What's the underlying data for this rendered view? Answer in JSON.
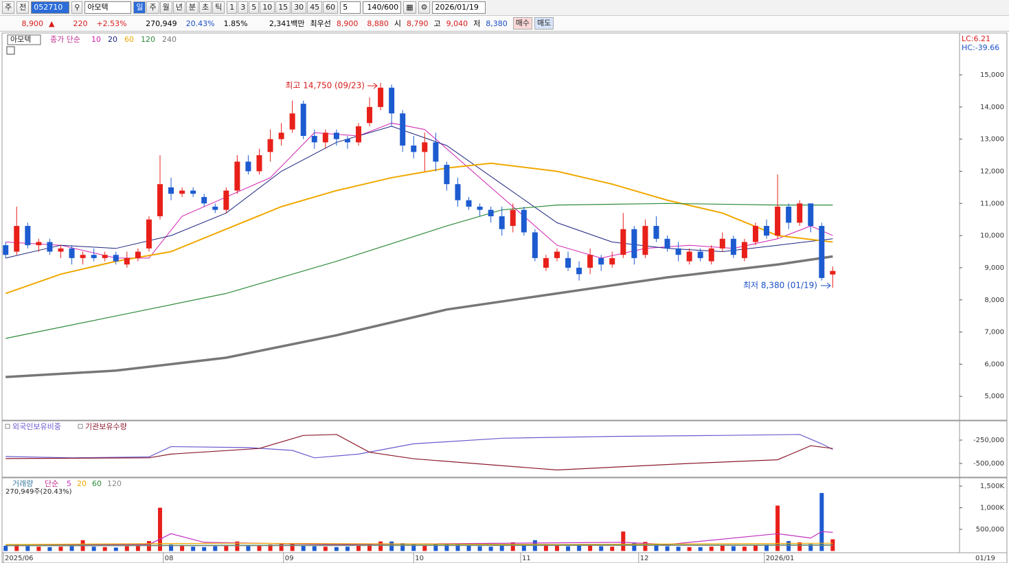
{
  "toolbar": {
    "buttons": [
      "주",
      "전"
    ],
    "code": "052710",
    "name": "아모텍",
    "periods": [
      "일",
      "주",
      "월",
      "년",
      "분",
      "초",
      "틱"
    ],
    "nums": [
      "1",
      "3",
      "5",
      "10",
      "15",
      "30",
      "45",
      "60"
    ],
    "unit": "5",
    "count": "140/600",
    "date": "2026/01/19"
  },
  "quote": {
    "price": "8,900",
    "change": "220",
    "rate": "+2.53%",
    "volume": "270,949",
    "turnover": "20.43%",
    "ratio": "1.85%",
    "amount": "2,341백만",
    "best_label": "최우선",
    "ask": "8,900",
    "bid": "8,880",
    "open_label": "시",
    "open": "8,790",
    "high_label": "고",
    "high": "9,040",
    "low_label": "저",
    "low": "8,380",
    "buy": "매수",
    "sell": "매도"
  },
  "chart_data": [
    {
      "type": "candlestick",
      "title": "아모텍",
      "legend_label": "종가 단순",
      "up_color": "#e8201a",
      "down_color": "#1c5bd0",
      "ohlc": [
        [
          9700,
          9800,
          9300,
          9400
        ],
        [
          9500,
          10900,
          9400,
          10300
        ],
        [
          10300,
          10400,
          9600,
          9700
        ],
        [
          9700,
          9900,
          9500,
          9800
        ],
        [
          9800,
          9900,
          9400,
          9500
        ],
        [
          9500,
          9700,
          9300,
          9600
        ],
        [
          9600,
          9700,
          9100,
          9300
        ],
        [
          9300,
          9500,
          9100,
          9400
        ],
        [
          9400,
          9600,
          9200,
          9300
        ],
        [
          9300,
          9500,
          9200,
          9400
        ],
        [
          9400,
          9500,
          9100,
          9200
        ],
        [
          9100,
          9500,
          9000,
          9300
        ],
        [
          9300,
          9600,
          9200,
          9500
        ],
        [
          9600,
          10600,
          9500,
          10500
        ],
        [
          10600,
          12500,
          10500,
          11600
        ],
        [
          11500,
          11800,
          11100,
          11300
        ],
        [
          11300,
          11500,
          11200,
          11400
        ],
        [
          11400,
          11500,
          11200,
          11300
        ],
        [
          11200,
          11300,
          10900,
          11000
        ],
        [
          10900,
          11000,
          10700,
          10800
        ],
        [
          10800,
          11500,
          10700,
          11400
        ],
        [
          11400,
          12500,
          11300,
          12300
        ],
        [
          12300,
          12500,
          11900,
          12000
        ],
        [
          12000,
          12700,
          11900,
          12500
        ],
        [
          12600,
          13300,
          12300,
          13000
        ],
        [
          13000,
          13500,
          12800,
          13200
        ],
        [
          13300,
          14200,
          13200,
          13800
        ],
        [
          14100,
          14200,
          13000,
          13100
        ],
        [
          13100,
          13300,
          12700,
          12900
        ],
        [
          12900,
          13300,
          12700,
          13200
        ],
        [
          13200,
          13300,
          12800,
          13000
        ],
        [
          13000,
          13100,
          12700,
          12900
        ],
        [
          12900,
          13500,
          12800,
          13400
        ],
        [
          13500,
          14300,
          13400,
          14000
        ],
        [
          14000,
          14750,
          13900,
          14600
        ],
        [
          14600,
          14700,
          13400,
          13800
        ],
        [
          13800,
          13900,
          12600,
          12800
        ],
        [
          12800,
          13100,
          12400,
          12600
        ],
        [
          12600,
          13200,
          12000,
          12900
        ],
        [
          12900,
          13200,
          12000,
          12300
        ],
        [
          12200,
          12300,
          11400,
          11600
        ],
        [
          11600,
          11800,
          10900,
          11100
        ],
        [
          11100,
          11200,
          10800,
          10900
        ],
        [
          10900,
          11000,
          10600,
          10800
        ],
        [
          10800,
          10900,
          10400,
          10600
        ],
        [
          10600,
          10900,
          10000,
          10200
        ],
        [
          10300,
          11000,
          10100,
          10800
        ],
        [
          10800,
          10900,
          10000,
          10100
        ],
        [
          10100,
          10200,
          9200,
          9300
        ],
        [
          9000,
          9400,
          8900,
          9300
        ],
        [
          9300,
          9600,
          9200,
          9500
        ],
        [
          9300,
          9500,
          8900,
          9000
        ],
        [
          9000,
          9200,
          8600,
          8800
        ],
        [
          9000,
          9600,
          8800,
          9400
        ],
        [
          9300,
          9400,
          8900,
          9100
        ],
        [
          9100,
          9500,
          9000,
          9300
        ],
        [
          9400,
          10700,
          9300,
          10200
        ],
        [
          10200,
          10300,
          9100,
          9300
        ],
        [
          9400,
          10500,
          9300,
          10300
        ],
        [
          10300,
          10600,
          9800,
          9900
        ],
        [
          9900,
          10000,
          9500,
          9600
        ],
        [
          9600,
          9800,
          9200,
          9400
        ],
        [
          9200,
          9600,
          9100,
          9500
        ],
        [
          9500,
          9600,
          9200,
          9300
        ],
        [
          9200,
          9700,
          9100,
          9600
        ],
        [
          9600,
          10100,
          9500,
          9900
        ],
        [
          9900,
          10000,
          9300,
          9400
        ],
        [
          9300,
          9900,
          9200,
          9800
        ],
        [
          9800,
          10400,
          9700,
          10300
        ],
        [
          10300,
          10500,
          9900,
          10000
        ],
        [
          10000,
          11900,
          9900,
          10900
        ],
        [
          10900,
          11000,
          10200,
          10400
        ],
        [
          10400,
          11100,
          10300,
          11000
        ],
        [
          11000,
          11000,
          10100,
          10300
        ],
        [
          10300,
          10400,
          8600,
          8680
        ],
        [
          8790,
          9040,
          8380,
          8900
        ]
      ],
      "series": [
        {
          "name": "10",
          "color": "#d020b0",
          "x": [
            0,
            5,
            10,
            13,
            16,
            20,
            24,
            28,
            32,
            35,
            38,
            42,
            46,
            50,
            54,
            58,
            62,
            66,
            70,
            73,
            75
          ],
          "values": [
            9800,
            9700,
            9300,
            9300,
            10600,
            11200,
            11800,
            13200,
            13100,
            13500,
            13300,
            12100,
            10900,
            9700,
            9300,
            9600,
            9700,
            9600,
            9900,
            10300,
            10000
          ]
        },
        {
          "name": "20",
          "color": "#1a237e",
          "x": [
            0,
            5,
            10,
            15,
            20,
            25,
            30,
            35,
            40,
            45,
            50,
            55,
            60,
            65,
            70,
            75
          ],
          "values": [
            9300,
            9700,
            9600,
            10000,
            10700,
            12000,
            12900,
            13400,
            12800,
            11600,
            10400,
            9800,
            9600,
            9500,
            9700,
            9900
          ]
        },
        {
          "name": "60",
          "color": "#f0a800",
          "x": [
            0,
            5,
            10,
            15,
            20,
            25,
            30,
            35,
            40,
            44,
            50,
            55,
            60,
            65,
            70,
            75
          ],
          "values": [
            8200,
            8800,
            9200,
            9500,
            10200,
            10900,
            11400,
            11800,
            12100,
            12250,
            12000,
            11600,
            11100,
            10700,
            10000,
            9800
          ]
        },
        {
          "name": "120",
          "color": "#2e8b3a",
          "x": [
            0,
            10,
            20,
            30,
            40,
            45,
            50,
            60,
            70,
            75
          ],
          "values": [
            6800,
            7500,
            8200,
            9200,
            10300,
            10800,
            10950,
            11000,
            10950,
            10950
          ]
        },
        {
          "name": "240",
          "color": "#777777",
          "x": [
            0,
            10,
            20,
            30,
            40,
            50,
            60,
            70,
            75
          ],
          "values": [
            5600,
            5800,
            6200,
            6900,
            7700,
            8200,
            8700,
            9100,
            9350
          ]
        }
      ],
      "ylim": [
        4300,
        16260
      ],
      "xlim": [
        -0.2,
        86.5
      ],
      "yticks": [
        {
          "value": 5000,
          "label": "5,000"
        },
        {
          "value": 6000,
          "label": "6,000"
        },
        {
          "value": 7000,
          "label": "7,000"
        },
        {
          "value": 8000,
          "label": "8,000"
        },
        {
          "value": 9000,
          "label": "9,000"
        },
        {
          "value": 10000,
          "label": "10,000"
        },
        {
          "value": 11000,
          "label": "11,000"
        },
        {
          "value": 12000,
          "label": "12,000"
        },
        {
          "value": 13000,
          "label": "13,000"
        },
        {
          "value": 14000,
          "label": "14,000"
        },
        {
          "value": 15000,
          "label": "15,000"
        }
      ],
      "annotations": [
        "최고 14,750 (09/23)",
        "최저 8,380 (01/19)"
      ],
      "lc": "LC:6.21",
      "hc": "HC:-39.66"
    },
    {
      "type": "line",
      "series": [
        {
          "name": "외국인보유비중",
          "color": "#6a5acd",
          "x": [
            0,
            6,
            13,
            15,
            22,
            26,
            28,
            32,
            37,
            45,
            55,
            65,
            72,
            74,
            75
          ],
          "values": [
            -426000,
            -440000,
            -430000,
            -320000,
            -330000,
            -360000,
            -440000,
            -400000,
            -290000,
            -230000,
            -210000,
            -200000,
            -190000,
            -290000,
            -350000
          ]
        },
        {
          "name": "기관보유수량",
          "color": "#8b1a2b",
          "x": [
            0,
            13,
            15,
            23,
            27,
            30,
            33,
            37,
            50,
            62,
            70,
            73,
            75
          ],
          "values": [
            -448000,
            -440000,
            -400000,
            -340000,
            -200000,
            -190000,
            -380000,
            -450000,
            -570000,
            -500000,
            -460000,
            -310000,
            -340000
          ]
        }
      ],
      "ylim": [
        -639700,
        -51500
      ],
      "xlim": [
        -0.2,
        86.5
      ],
      "yticks": [
        {
          "value": -250000,
          "label": "-250,000"
        },
        {
          "value": -500000,
          "label": "-500,000"
        }
      ]
    },
    {
      "type": "bar",
      "title": "거래량",
      "legend_label": "단순",
      "note": "270,949주(20.43%)",
      "values": [
        120000,
        150000,
        110000,
        100000,
        90000,
        100000,
        110000,
        250000,
        100000,
        90000,
        80000,
        110000,
        120000,
        230000,
        1000000,
        150000,
        120000,
        100000,
        90000,
        110000,
        130000,
        220000,
        130000,
        140000,
        150000,
        160000,
        180000,
        140000,
        110000,
        100000,
        90000,
        100000,
        140000,
        170000,
        220000,
        220000,
        180000,
        150000,
        130000,
        160000,
        170000,
        150000,
        120000,
        110000,
        100000,
        120000,
        200000,
        130000,
        250000,
        160000,
        120000,
        110000,
        130000,
        150000,
        110000,
        100000,
        450000,
        180000,
        210000,
        150000,
        110000,
        100000,
        90000,
        90000,
        100000,
        120000,
        110000,
        100000,
        130000,
        150000,
        1050000,
        230000,
        200000,
        160000,
        1340000,
        270949
      ],
      "series": [
        {
          "name": "5",
          "color": "#c030c0",
          "x": [
            0,
            13,
            15,
            18,
            30,
            56,
            60,
            70,
            73,
            74,
            75
          ],
          "values": [
            150000,
            150000,
            400000,
            200000,
            150000,
            200000,
            150000,
            400000,
            300000,
            450000,
            430000
          ]
        },
        {
          "name": "20",
          "color": "#f0a800",
          "x": [
            0,
            20,
            50,
            75
          ],
          "values": [
            150000,
            180000,
            150000,
            180000
          ]
        },
        {
          "name": "60",
          "color": "#2e8b3a",
          "x": [
            0,
            75
          ],
          "values": [
            130000,
            140000
          ]
        },
        {
          "name": "120",
          "color": "#888888",
          "x": [
            0,
            75
          ],
          "values": [
            120000,
            130000
          ]
        }
      ],
      "ylim": [
        0,
        1627000
      ],
      "xlim": [
        -0.2,
        86.5
      ],
      "yticks": [
        {
          "value": 500000,
          "label": "500,000"
        },
        {
          "value": 1000000,
          "label": "1,000K"
        },
        {
          "value": 1500000,
          "label": "1,500K"
        }
      ],
      "xticks": [
        {
          "value": -0.2,
          "label": "2025/06"
        },
        {
          "value": 14.3,
          "label": "08"
        },
        {
          "value": 25.2,
          "label": "09"
        },
        {
          "value": 37.0,
          "label": "10"
        },
        {
          "value": 46.7,
          "label": "11"
        },
        {
          "value": 57.4,
          "label": "12"
        },
        {
          "value": 68.8,
          "label": "2026/01"
        }
      ],
      "last_date": "01/19"
    }
  ]
}
